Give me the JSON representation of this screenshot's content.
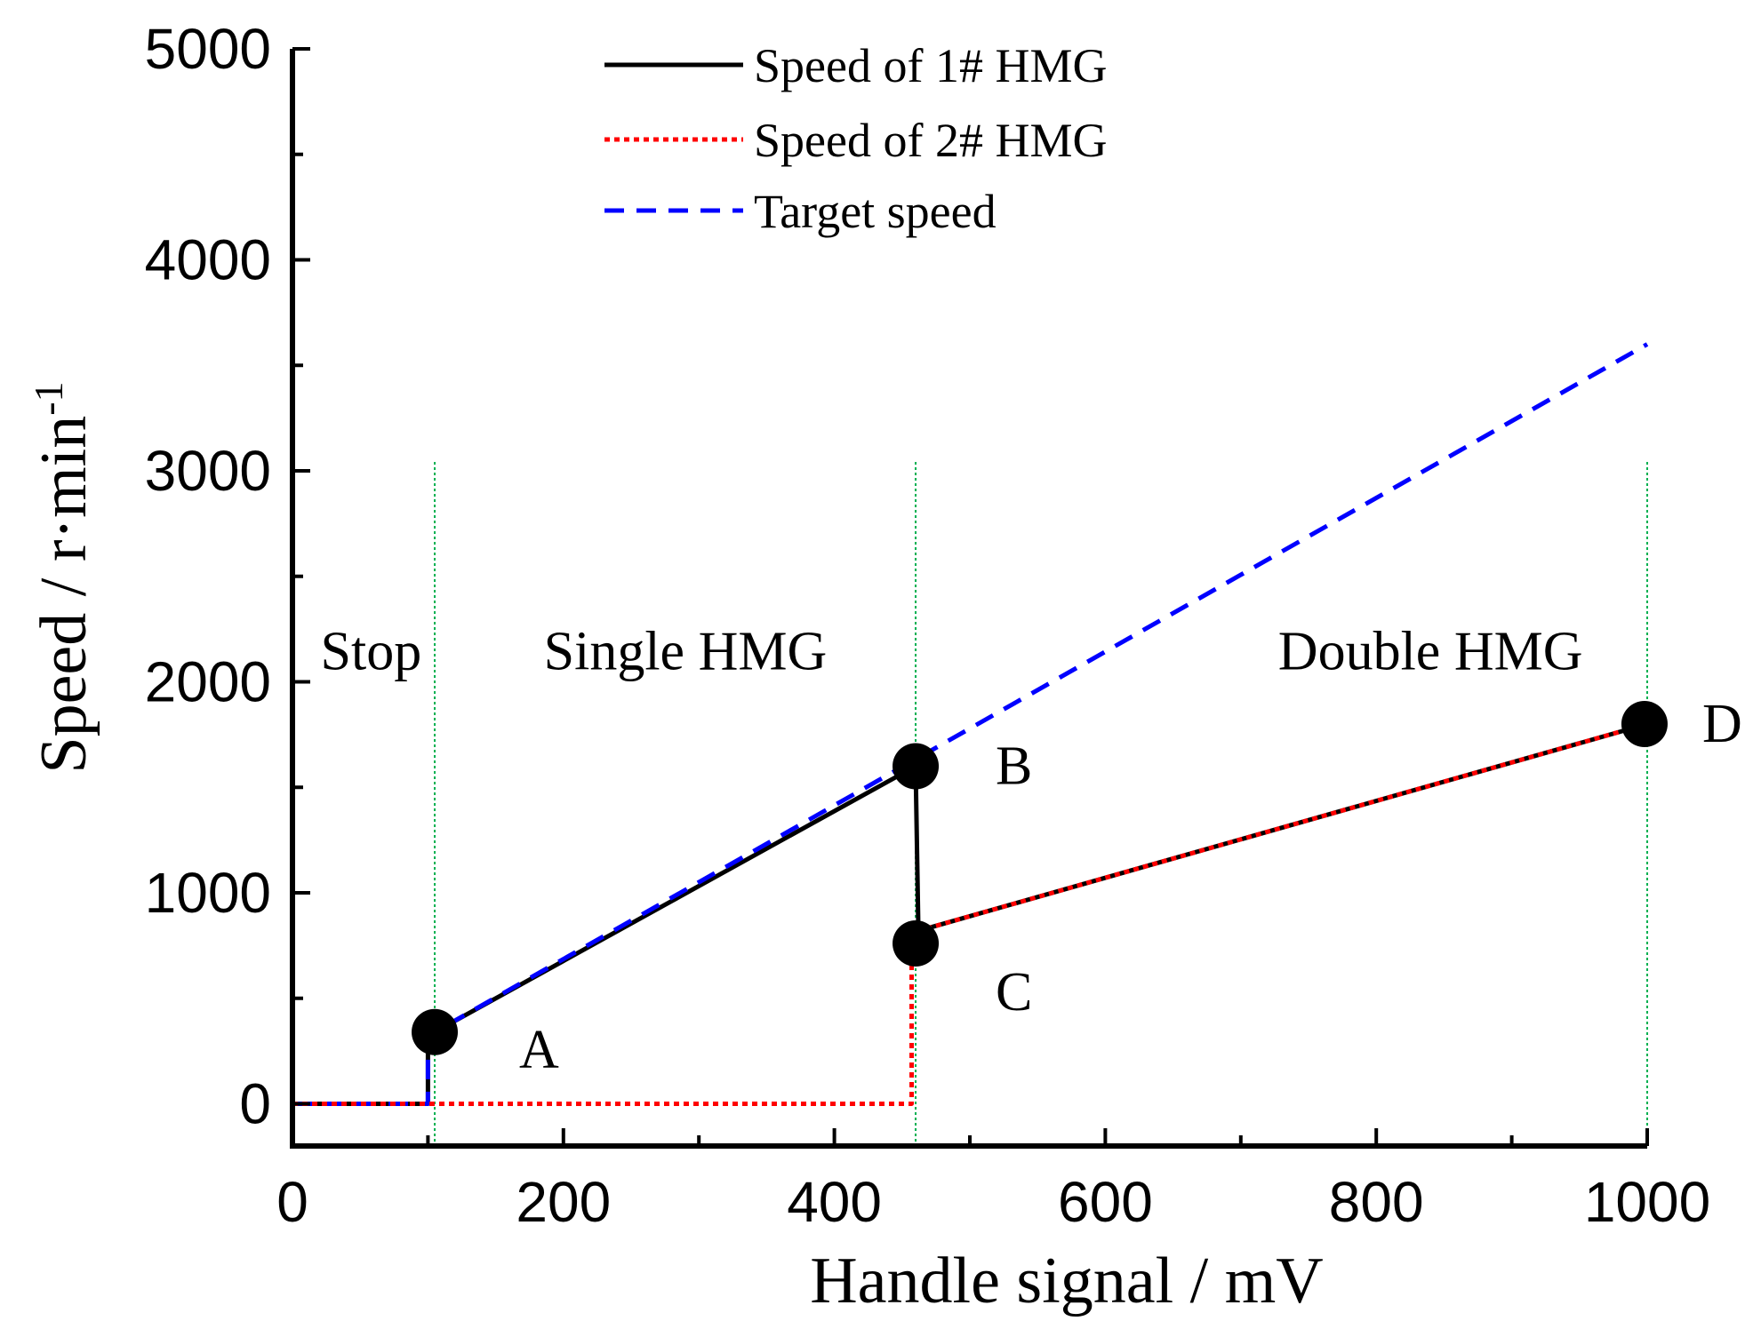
{
  "chart_data": {
    "type": "line",
    "title": "",
    "xlabel": "Handle signal / mV",
    "ylabel_main": "Speed  / r·min",
    "ylabel_sup": "-1",
    "xlim": [
      0,
      1000
    ],
    "ylim": [
      -200,
      5000
    ],
    "xticks": [
      0,
      200,
      400,
      600,
      800,
      1000
    ],
    "xtick_labels": [
      "0",
      "200",
      "400",
      "600",
      "800",
      "1000"
    ],
    "yticks": [
      0,
      1000,
      2000,
      3000,
      4000,
      5000
    ],
    "ytick_labels": [
      "0",
      "1000",
      "2000",
      "3000",
      "4000",
      "5000"
    ],
    "legend_position": "top-center",
    "series": [
      {
        "name": "Speed of 1# HMG",
        "color": "#000000",
        "dash": "solid",
        "x": [
          0,
          100,
          100,
          105,
          460,
          460,
          462,
          1000
        ],
        "y": [
          0,
          0,
          300,
          340,
          1600,
          1600,
          820,
          1800
        ]
      },
      {
        "name": "Speed of 2# HMG",
        "color": "#ff0000",
        "dash": "dotted",
        "x": [
          0,
          457,
          457,
          462,
          1000
        ],
        "y": [
          0,
          0,
          720,
          820,
          1800
        ]
      },
      {
        "name": "Target speed",
        "color": "#0000ff",
        "dash": "dashed",
        "x": [
          0,
          100,
          100,
          105,
          1000
        ],
        "y": [
          0,
          0,
          300,
          340,
          3600
        ]
      }
    ],
    "boundaries": {
      "color": "#00b050",
      "x": [
        105,
        460,
        1000
      ]
    },
    "regions": [
      {
        "label": "Stop",
        "x": 58,
        "y": 2060
      },
      {
        "label": "Single HMG",
        "x": 290,
        "y": 2060
      },
      {
        "label": "Double HMG",
        "x": 840,
        "y": 2060
      }
    ],
    "points": [
      {
        "label": "A",
        "x": 105,
        "y": 340,
        "label_dx": 95,
        "label_dy": 40
      },
      {
        "label": "B",
        "x": 460,
        "y": 1600,
        "label_dx": 90,
        "label_dy": 20
      },
      {
        "label": "C",
        "x": 460,
        "y": 760,
        "label_dx": 90,
        "label_dy": 75
      },
      {
        "label": "D",
        "x": 998,
        "y": 1800,
        "label_dx": 65,
        "label_dy": 20
      }
    ]
  }
}
